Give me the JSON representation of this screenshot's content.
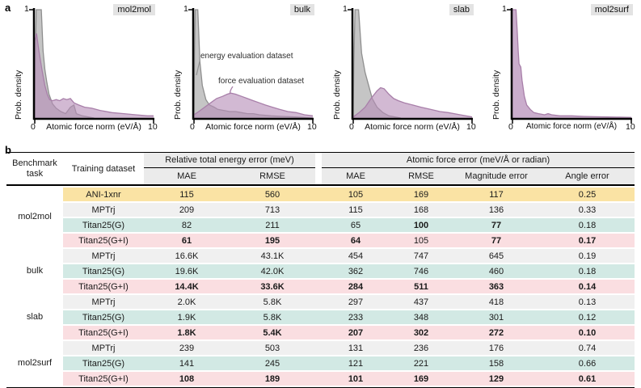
{
  "panel_a_label": "a",
  "panel_b_label": "b",
  "colors": {
    "energy_fill": "rgba(150,150,150,0.55)",
    "energy_stroke": "#8f8f8f",
    "force_fill": "rgba(182,142,184,0.62)",
    "force_stroke": "#a87fa9",
    "row_yellow": "#fae3a4",
    "row_gray": "#f0f0f0",
    "row_teal": "#d2e9e4",
    "row_pink": "#fadee1",
    "header_gray": "#ebebeb"
  },
  "chart_data": [
    {
      "type": "area",
      "title": "mol2mol",
      "xlabel": "Atomic force norm (eV/Å)",
      "ylabel": "Prob. density",
      "xlim": [
        0,
        10
      ],
      "ylim": [
        0,
        1
      ],
      "xticks": [
        "0",
        "10"
      ],
      "yticks": [
        "1"
      ],
      "series": [
        {
          "name": "energy evaluation dataset",
          "color": "#8f8f8f",
          "fill": "rgba(150,150,150,0.55)",
          "points": [
            [
              0,
              0
            ],
            [
              0.05,
              0.55
            ],
            [
              0.12,
              1
            ],
            [
              0.55,
              1
            ],
            [
              0.7,
              0.62
            ],
            [
              0.85,
              0.45
            ],
            [
              1.0,
              0.34
            ],
            [
              1.2,
              0.22
            ],
            [
              1.5,
              0.13
            ],
            [
              1.8,
              0.09
            ],
            [
              2.2,
              0.06
            ],
            [
              2.6,
              0.04
            ],
            [
              3.0,
              0.1
            ],
            [
              3.3,
              0.12
            ],
            [
              3.5,
              0.04
            ],
            [
              4.0,
              0.02
            ],
            [
              4.5,
              0.01
            ],
            [
              5,
              0
            ]
          ]
        },
        {
          "name": "force evaluation dataset",
          "color": "#a87fa9",
          "fill": "rgba(182,142,184,0.62)",
          "points": [
            [
              0,
              0.72
            ],
            [
              0.15,
              0.78
            ],
            [
              0.35,
              0.62
            ],
            [
              0.6,
              0.45
            ],
            [
              0.85,
              0.3
            ],
            [
              1.05,
              0.22
            ],
            [
              1.25,
              0.17
            ],
            [
              1.5,
              0.16
            ],
            [
              1.8,
              0.17
            ],
            [
              2.1,
              0.16
            ],
            [
              2.4,
              0.18
            ],
            [
              2.7,
              0.17
            ],
            [
              3.0,
              0.18
            ],
            [
              3.3,
              0.14
            ],
            [
              3.7,
              0.12
            ],
            [
              4.2,
              0.1
            ],
            [
              4.8,
              0.09
            ],
            [
              5.5,
              0.07
            ],
            [
              6.5,
              0.05
            ],
            [
              7.5,
              0.04
            ],
            [
              8.5,
              0.03
            ],
            [
              9.5,
              0.02
            ],
            [
              10,
              0.02
            ]
          ]
        }
      ]
    },
    {
      "type": "area",
      "title": "bulk",
      "xlabel": "Atomic force norm (eV/Å)",
      "ylabel": "Prob. density",
      "xlim": [
        0,
        10
      ],
      "ylim": [
        0,
        1
      ],
      "xticks": [
        "0",
        "10"
      ],
      "yticks": [
        "1"
      ],
      "annotations": [
        {
          "text": "energy evaluation dataset"
        },
        {
          "text": "force evaluation dataset"
        }
      ],
      "series": [
        {
          "name": "energy evaluation dataset",
          "color": "#8f8f8f",
          "fill": "rgba(150,150,150,0.55)",
          "points": [
            [
              0,
              0
            ],
            [
              0.04,
              0.6
            ],
            [
              0.1,
              1
            ],
            [
              0.32,
              1
            ],
            [
              0.5,
              0.52
            ],
            [
              0.7,
              0.3
            ],
            [
              1.0,
              0.17
            ],
            [
              1.3,
              0.12
            ],
            [
              1.7,
              0.1
            ],
            [
              2.0,
              0.08
            ],
            [
              2.5,
              0.07
            ],
            [
              3.0,
              0.06
            ],
            [
              3.5,
              0.06
            ],
            [
              4.0,
              0.05
            ],
            [
              4.5,
              0.04
            ],
            [
              5.0,
              0.04
            ],
            [
              5.5,
              0.03
            ],
            [
              6.5,
              0.02
            ],
            [
              7.5,
              0.015
            ],
            [
              8.5,
              0.01
            ],
            [
              10,
              0
            ]
          ]
        },
        {
          "name": "force evaluation dataset",
          "color": "#a87fa9",
          "fill": "rgba(182,142,184,0.62)",
          "points": [
            [
              0,
              0.03
            ],
            [
              0.4,
              0.06
            ],
            [
              0.9,
              0.1
            ],
            [
              1.4,
              0.14
            ],
            [
              1.9,
              0.18
            ],
            [
              2.4,
              0.2
            ],
            [
              2.8,
              0.22
            ],
            [
              3.1,
              0.23
            ],
            [
              3.5,
              0.22
            ],
            [
              4.0,
              0.2
            ],
            [
              4.5,
              0.18
            ],
            [
              5.0,
              0.16
            ],
            [
              5.5,
              0.14
            ],
            [
              6.0,
              0.12
            ],
            [
              6.6,
              0.1
            ],
            [
              7.2,
              0.08
            ],
            [
              7.9,
              0.06
            ],
            [
              8.6,
              0.05
            ],
            [
              9.3,
              0.03
            ],
            [
              10,
              0.02
            ]
          ]
        }
      ]
    },
    {
      "type": "area",
      "title": "slab",
      "xlabel": "Atomic force norm (eV/Å)",
      "ylabel": "Prob. density",
      "xlim": [
        0,
        10
      ],
      "ylim": [
        0,
        1
      ],
      "xticks": [
        "0",
        "10"
      ],
      "yticks": [
        "1"
      ],
      "series": [
        {
          "name": "energy evaluation dataset",
          "color": "#8f8f8f",
          "fill": "rgba(150,150,150,0.55)",
          "points": [
            [
              0,
              0
            ],
            [
              0.05,
              0.5
            ],
            [
              0.15,
              1
            ],
            [
              0.45,
              1
            ],
            [
              0.7,
              0.6
            ],
            [
              1.0,
              0.42
            ],
            [
              1.3,
              0.3
            ],
            [
              1.6,
              0.18
            ],
            [
              2.0,
              0.1
            ],
            [
              2.5,
              0.05
            ],
            [
              3.0,
              0.02
            ],
            [
              3.5,
              0.01
            ],
            [
              4,
              0
            ]
          ]
        },
        {
          "name": "force evaluation dataset",
          "color": "#a87fa9",
          "fill": "rgba(182,142,184,0.62)",
          "points": [
            [
              0,
              0.01
            ],
            [
              0.5,
              0.05
            ],
            [
              1.0,
              0.1
            ],
            [
              1.5,
              0.18
            ],
            [
              2.0,
              0.25
            ],
            [
              2.3,
              0.28
            ],
            [
              2.6,
              0.27
            ],
            [
              3.0,
              0.22
            ],
            [
              3.4,
              0.18
            ],
            [
              3.8,
              0.16
            ],
            [
              4.3,
              0.14
            ],
            [
              5.0,
              0.12
            ],
            [
              5.7,
              0.1
            ],
            [
              6.5,
              0.08
            ],
            [
              7.3,
              0.06
            ],
            [
              8.0,
              0.05
            ],
            [
              9.0,
              0.03
            ],
            [
              10,
              0.01
            ]
          ]
        }
      ]
    },
    {
      "type": "area",
      "title": "mol2surf",
      "xlabel": "Atomic force norm (eV/Å)",
      "ylabel": "Prob. density",
      "xlim": [
        0,
        10
      ],
      "ylim": [
        0,
        1
      ],
      "xticks": [
        "0",
        "10"
      ],
      "yticks": [
        "1"
      ],
      "series": [
        {
          "name": "force evaluation dataset",
          "color": "#a87fa9",
          "fill": "rgba(182,142,184,0.72)",
          "points": [
            [
              0,
              1
            ],
            [
              0.3,
              1
            ],
            [
              0.4,
              0.8
            ],
            [
              0.48,
              0.62
            ],
            [
              0.55,
              0.5
            ],
            [
              0.7,
              0.47
            ],
            [
              0.8,
              0.35
            ],
            [
              1.0,
              0.2
            ],
            [
              1.2,
              0.12
            ],
            [
              1.5,
              0.08
            ],
            [
              1.8,
              0.05
            ],
            [
              2.2,
              0.04
            ],
            [
              2.7,
              0.03
            ],
            [
              3.0,
              0.04
            ],
            [
              3.3,
              0.03
            ],
            [
              4,
              0.02
            ],
            [
              5,
              0.02
            ],
            [
              6,
              0.015
            ],
            [
              7,
              0.012
            ],
            [
              8,
              0.01
            ],
            [
              9,
              0.008
            ],
            [
              10,
              0.005
            ]
          ]
        }
      ]
    }
  ],
  "table": {
    "col1_header": "Benchmark task",
    "col2_header": "Training dataset",
    "group_energy": "Relative total energy error (meV)",
    "group_force": "Atomic force error (meV/Å or radian)",
    "subheaders_energy": [
      "MAE",
      "RMSE"
    ],
    "subheaders_force": [
      "MAE",
      "RMSE",
      "Magnitude error",
      "Angle error"
    ],
    "groups": [
      {
        "task": "mol2mol",
        "rows": [
          {
            "dataset": "ANI-1xnr",
            "color": "yellow",
            "values": [
              "115",
              "560",
              "105",
              "169",
              "117",
              "0.25"
            ],
            "bold": [
              false,
              false,
              false,
              false,
              false,
              false
            ]
          },
          {
            "dataset": "MPTrj",
            "color": "gray",
            "values": [
              "209",
              "713",
              "115",
              "168",
              "136",
              "0.33"
            ],
            "bold": [
              false,
              false,
              false,
              false,
              false,
              false
            ]
          },
          {
            "dataset": "Titan25(G)",
            "color": "teal",
            "values": [
              "82",
              "211",
              "65",
              "100",
              "77",
              "0.18"
            ],
            "bold": [
              false,
              false,
              false,
              true,
              true,
              false
            ]
          },
          {
            "dataset": "Titan25(G+I)",
            "color": "pink",
            "values": [
              "61",
              "195",
              "64",
              "105",
              "77",
              "0.17"
            ],
            "bold": [
              true,
              true,
              true,
              false,
              true,
              true
            ]
          }
        ]
      },
      {
        "task": "bulk",
        "rows": [
          {
            "dataset": "MPTrj",
            "color": "gray",
            "values": [
              "16.6K",
              "43.1K",
              "454",
              "747",
              "645",
              "0.19"
            ],
            "bold": [
              false,
              false,
              false,
              false,
              false,
              false
            ]
          },
          {
            "dataset": "Titan25(G)",
            "color": "teal",
            "values": [
              "19.6K",
              "42.0K",
              "362",
              "746",
              "460",
              "0.18"
            ],
            "bold": [
              false,
              false,
              false,
              false,
              false,
              false
            ]
          },
          {
            "dataset": "Titan25(G+I)",
            "color": "pink",
            "values": [
              "14.4K",
              "33.6K",
              "284",
              "511",
              "363",
              "0.14"
            ],
            "bold": [
              true,
              true,
              true,
              true,
              true,
              true
            ]
          }
        ]
      },
      {
        "task": "slab",
        "rows": [
          {
            "dataset": "MPTrj",
            "color": "gray",
            "values": [
              "2.0K",
              "5.8K",
              "297",
              "437",
              "418",
              "0.13"
            ],
            "bold": [
              false,
              false,
              false,
              false,
              false,
              false
            ]
          },
          {
            "dataset": "Titan25(G)",
            "color": "teal",
            "values": [
              "1.9K",
              "5.8K",
              "233",
              "348",
              "301",
              "0.12"
            ],
            "bold": [
              false,
              false,
              false,
              false,
              false,
              false
            ]
          },
          {
            "dataset": "Titan25(G+I)",
            "color": "pink",
            "values": [
              "1.8K",
              "5.4K",
              "207",
              "302",
              "272",
              "0.10"
            ],
            "bold": [
              true,
              true,
              true,
              true,
              true,
              true
            ]
          }
        ]
      },
      {
        "task": "mol2surf",
        "rows": [
          {
            "dataset": "MPTrj",
            "color": "gray",
            "values": [
              "239",
              "503",
              "131",
              "236",
              "176",
              "0.74"
            ],
            "bold": [
              false,
              false,
              false,
              false,
              false,
              false
            ]
          },
          {
            "dataset": "Titan25(G)",
            "color": "teal",
            "values": [
              "141",
              "245",
              "121",
              "221",
              "158",
              "0.66"
            ],
            "bold": [
              false,
              false,
              false,
              false,
              false,
              false
            ]
          },
          {
            "dataset": "Titan25(G+I)",
            "color": "pink",
            "values": [
              "108",
              "189",
              "101",
              "169",
              "129",
              "0.61"
            ],
            "bold": [
              true,
              true,
              true,
              true,
              true,
              true
            ]
          }
        ]
      }
    ]
  }
}
